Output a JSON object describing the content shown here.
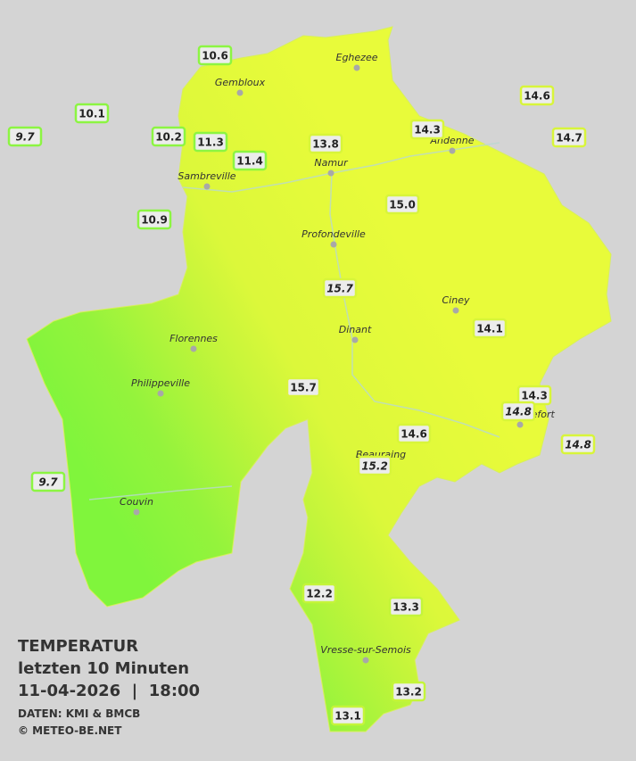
{
  "legend": {
    "title": "TEMPERATUR",
    "subtitle": "letzten 10 Minuten",
    "datetime": "11-04-2026  |  18:00",
    "source": "DATEN: KMI & BMCB",
    "copyright": "© METEO-BE.NET"
  },
  "cities": [
    "Eghezee",
    "Gembloux",
    "Andenne",
    "Namur",
    "Sambreville",
    "Profondeville",
    "Ciney",
    "Dinant",
    "Florennes",
    "Philippeville",
    "Rochefort",
    "Beauraing",
    "Couvin",
    "Vresse-sur-Semois"
  ],
  "stations": [
    "10.6",
    "10.1",
    "9.7",
    "10.2",
    "11.3",
    "11.4",
    "13.8",
    "14.3",
    "14.6",
    "14.7",
    "10.9",
    "15.0",
    "15.7",
    "14.1",
    "15.7",
    "14.3",
    "14.8",
    "14.8",
    "14.6",
    "15.2",
    "9.7",
    "12.2",
    "13.3",
    "13.2",
    "13.1"
  ]
}
